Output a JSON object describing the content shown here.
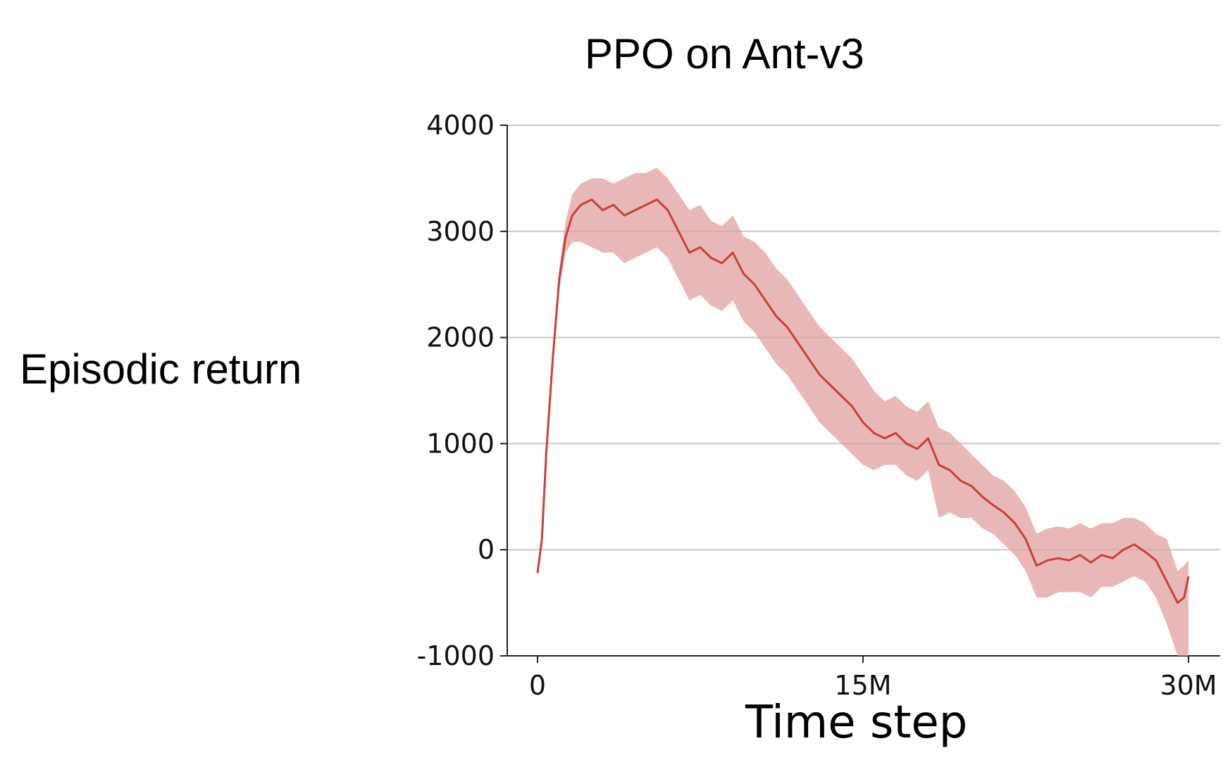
{
  "chart_data": {
    "type": "line",
    "title": "PPO on Ant-v3",
    "xlabel": "Time step",
    "ylabel": "Episodic return",
    "xlim": [
      0,
      30000000
    ],
    "ylim": [
      -1000,
      4000
    ],
    "x_ticks": [
      {
        "value": 0,
        "label": "0"
      },
      {
        "value": 15000000,
        "label": "15M"
      },
      {
        "value": 30000000,
        "label": "30M"
      }
    ],
    "y_ticks": [
      {
        "value": 4000,
        "label": "4000"
      },
      {
        "value": 3000,
        "label": "3000"
      },
      {
        "value": 2000,
        "label": "2000"
      },
      {
        "value": 1000,
        "label": "1000"
      },
      {
        "value": 0,
        "label": "0"
      },
      {
        "value": -1000,
        "label": "-1000"
      }
    ],
    "grid": "horizontal",
    "line_color": "#c8403a",
    "band_color": "#e0a0a0",
    "series": [
      {
        "x": [
          0,
          200000,
          400000,
          700000,
          1000000,
          1300000,
          1600000,
          2000000,
          2500000,
          3000000,
          3500000,
          4000000,
          4500000,
          5000000,
          5500000,
          6000000,
          6500000,
          7000000,
          7500000,
          8000000,
          8500000,
          9000000,
          9500000,
          10000000,
          10500000,
          11000000,
          11500000,
          12000000,
          12500000,
          13000000,
          13500000,
          14000000,
          14500000,
          15000000,
          15500000,
          16000000,
          16500000,
          17000000,
          17500000,
          18000000,
          18500000,
          19000000,
          19500000,
          20000000,
          20500000,
          21000000,
          21500000,
          22000000,
          22500000,
          23000000,
          23500000,
          24000000,
          24500000,
          25000000,
          25500000,
          26000000,
          26500000,
          27000000,
          27500000,
          28000000,
          28500000,
          29000000,
          29500000,
          29800000,
          30000000
        ],
        "mean": [
          -220,
          100,
          900,
          1800,
          2550,
          2950,
          3150,
          3250,
          3300,
          3200,
          3250,
          3150,
          3200,
          3250,
          3300,
          3200,
          3000,
          2800,
          2850,
          2750,
          2700,
          2800,
          2600,
          2500,
          2350,
          2200,
          2100,
          1950,
          1800,
          1650,
          1550,
          1450,
          1350,
          1200,
          1100,
          1050,
          1100,
          1000,
          950,
          1050,
          800,
          750,
          650,
          600,
          500,
          420,
          350,
          250,
          100,
          -150,
          -100,
          -80,
          -100,
          -50,
          -120,
          -50,
          -80,
          0,
          50,
          -20,
          -100,
          -300,
          -500,
          -450,
          -250
        ],
        "lower": [
          -220,
          100,
          900,
          1800,
          2450,
          2800,
          2900,
          2900,
          2850,
          2800,
          2800,
          2700,
          2750,
          2800,
          2850,
          2750,
          2550,
          2350,
          2400,
          2300,
          2250,
          2350,
          2150,
          2050,
          1900,
          1750,
          1650,
          1500,
          1350,
          1200,
          1100,
          1000,
          900,
          800,
          750,
          800,
          800,
          700,
          650,
          750,
          300,
          350,
          300,
          300,
          200,
          150,
          50,
          -50,
          -200,
          -450,
          -450,
          -400,
          -400,
          -400,
          -450,
          -350,
          -350,
          -300,
          -250,
          -300,
          -450,
          -700,
          -1000,
          -1000,
          -1000
        ],
        "upper": [
          -220,
          100,
          900,
          1800,
          2650,
          3100,
          3350,
          3450,
          3500,
          3500,
          3450,
          3500,
          3550,
          3550,
          3600,
          3500,
          3350,
          3200,
          3250,
          3100,
          3050,
          3150,
          2950,
          2900,
          2800,
          2650,
          2550,
          2400,
          2250,
          2100,
          2000,
          1900,
          1800,
          1650,
          1500,
          1400,
          1450,
          1350,
          1300,
          1400,
          1150,
          1100,
          1000,
          900,
          800,
          700,
          650,
          550,
          400,
          150,
          200,
          220,
          200,
          250,
          200,
          250,
          250,
          300,
          300,
          250,
          150,
          100,
          -200,
          -150,
          -100
        ]
      }
    ]
  }
}
